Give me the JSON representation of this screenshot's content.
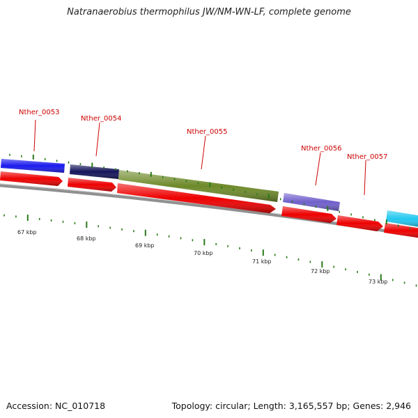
{
  "title": "Natranaerobius thermophilus JW/NM-WN-LF, complete genome",
  "footer": {
    "accession": "Accession: NC_010718",
    "summary": "Topology: circular; Length: 3,165,557 bp; Genes: 2,946"
  },
  "scale_labels": [
    "67 kbp",
    "68 kbp",
    "69 kbp",
    "70 kbp",
    "71 kbp",
    "72 kbp",
    "73 kbp"
  ],
  "genes": [
    {
      "label": "Nther_0053",
      "color": "#1a1aee"
    },
    {
      "label": "Nther_0054",
      "color": "#14145a"
    },
    {
      "label": "Nther_0055",
      "color": "#6e8a2a"
    },
    {
      "label": "Nther_0056",
      "color": "#7060cc"
    },
    {
      "label": "Nther_0057",
      "color": ""
    },
    {
      "label": "",
      "color": "#22c8f0"
    }
  ],
  "colors": {
    "label_red": "#cc0000",
    "cds_red": "#ee0000",
    "tick_green": "#2a7a1a",
    "backbone": "#888888"
  }
}
